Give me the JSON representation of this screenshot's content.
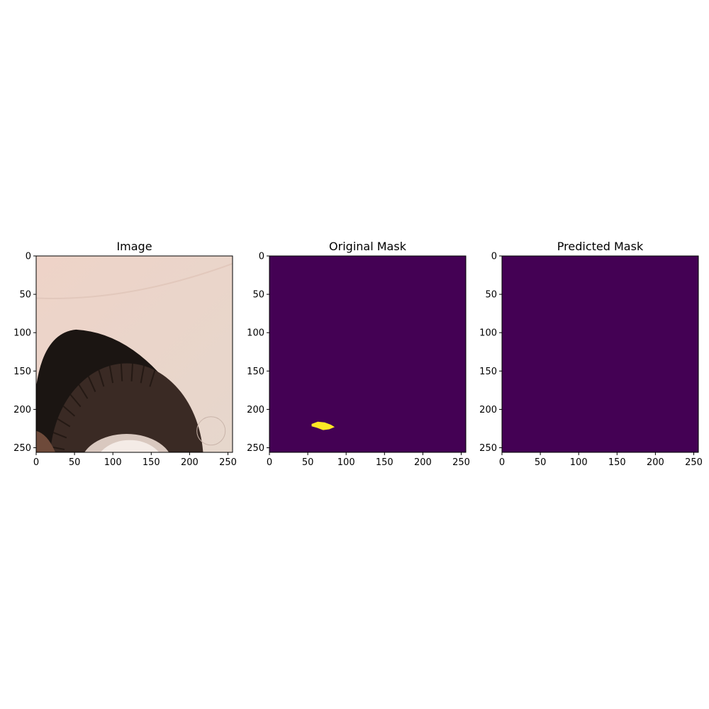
{
  "colors": {
    "background": "#ffffff",
    "axis": "#000000",
    "mask_background": "#440154",
    "mask_foreground": "#fde725",
    "car_body": "#ecd3c7",
    "tire": "#3a2a24",
    "wheel_well": "#1b1512",
    "rim": "#d9c8bf"
  },
  "chart_data": [
    {
      "type": "image",
      "title": "Image",
      "content": "car-wheel-photo",
      "xlim": [
        0,
        256
      ],
      "ylim": [
        256,
        0
      ],
      "xticks": [
        0,
        50,
        100,
        150,
        200,
        250
      ],
      "yticks": [
        0,
        50,
        100,
        150,
        200,
        250
      ],
      "xtick_labels": [
        "0",
        "50",
        "100",
        "150",
        "200",
        "250"
      ],
      "ytick_labels": [
        "0",
        "50",
        "100",
        "150",
        "200",
        "250"
      ]
    },
    {
      "type": "heatmap",
      "title": "Original Mask",
      "content": "binary-mask",
      "xlim": [
        0,
        256
      ],
      "ylim": [
        256,
        0
      ],
      "xticks": [
        0,
        50,
        100,
        150,
        200,
        250
      ],
      "yticks": [
        0,
        50,
        100,
        150,
        200,
        250
      ],
      "xtick_labels": [
        "0",
        "50",
        "100",
        "150",
        "200",
        "250"
      ],
      "ytick_labels": [
        "0",
        "50",
        "100",
        "150",
        "200",
        "250"
      ],
      "regions": [
        {
          "value": 1,
          "outline": [
            [
              55,
              219
            ],
            [
              63,
              216
            ],
            [
              72,
              217
            ],
            [
              80,
              220
            ],
            [
              85,
              223
            ],
            [
              78,
              226
            ],
            [
              70,
              227
            ],
            [
              62,
              224
            ],
            [
              55,
              222
            ]
          ]
        }
      ]
    },
    {
      "type": "heatmap",
      "title": "Predicted Mask",
      "content": "binary-mask",
      "xlim": [
        0,
        256
      ],
      "ylim": [
        256,
        0
      ],
      "xticks": [
        0,
        50,
        100,
        150,
        200,
        250
      ],
      "yticks": [
        0,
        50,
        100,
        150,
        200,
        250
      ],
      "xtick_labels": [
        "0",
        "50",
        "100",
        "150",
        "200",
        "250"
      ],
      "ytick_labels": [
        "0",
        "50",
        "100",
        "150",
        "200",
        "250"
      ],
      "regions": []
    }
  ]
}
